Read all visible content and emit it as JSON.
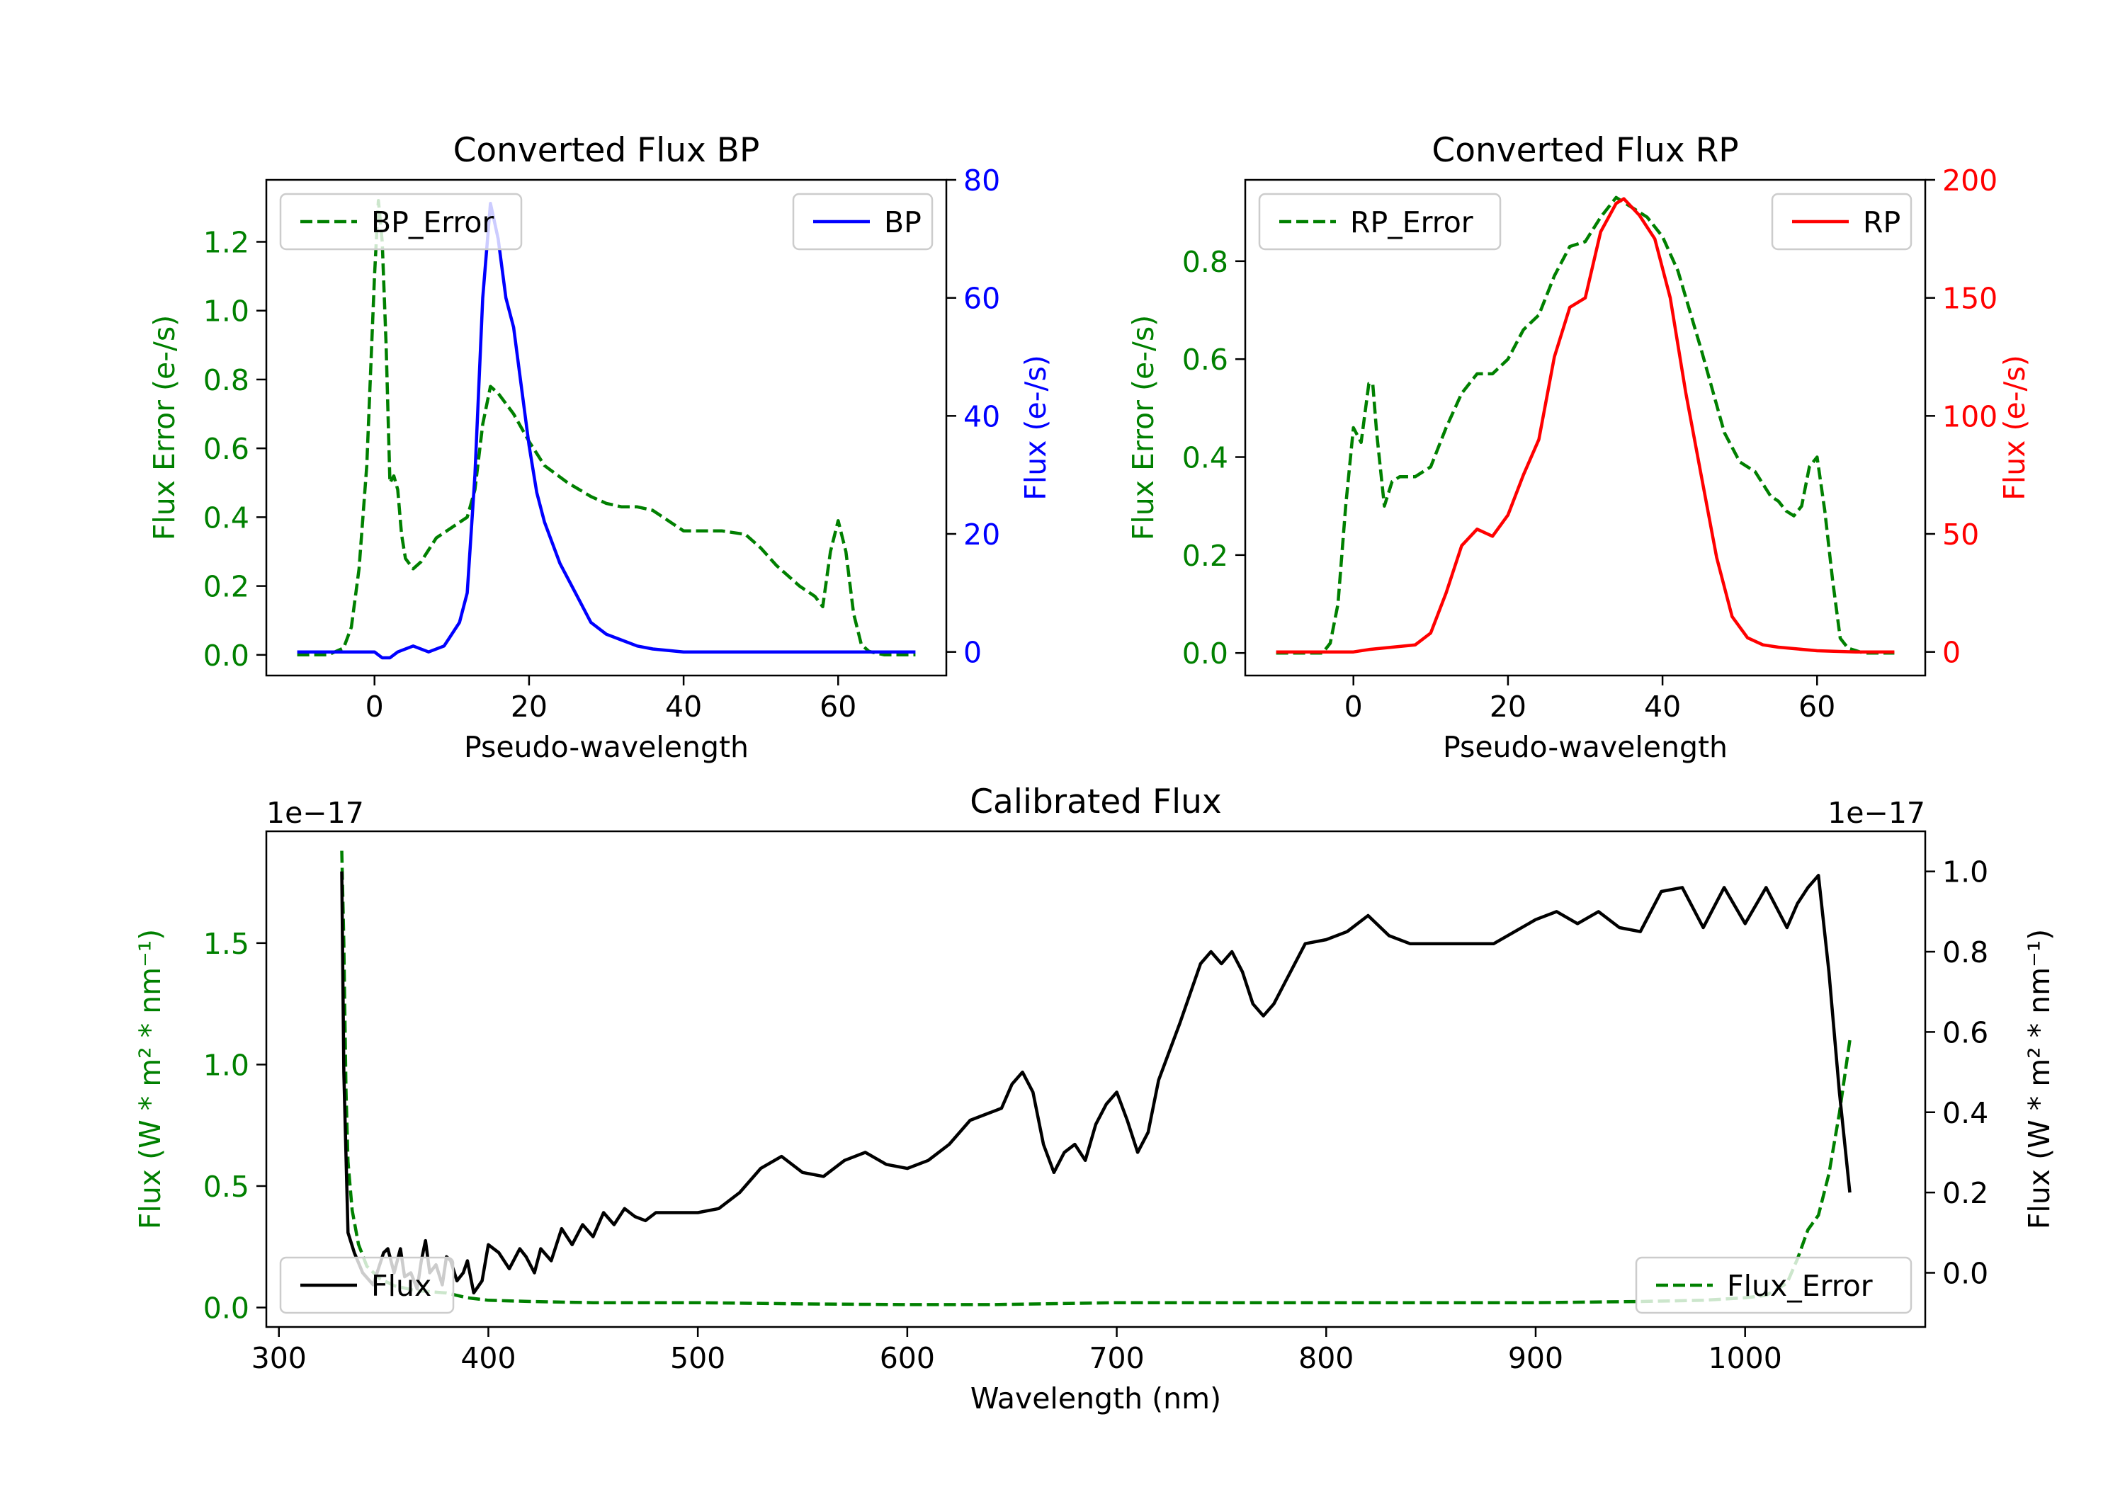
{
  "chart_data": [
    {
      "id": "bp",
      "type": "line",
      "title": "Converted Flux BP",
      "xlabel": "Pseudo-wavelength",
      "ylabel_left": "Flux Error (e-/s)",
      "ylabel_right": "Flux (e-/s)",
      "xlim": [
        -14,
        74
      ],
      "ylim_left": [
        -0.06,
        1.38
      ],
      "ylim_right": [
        -4,
        80
      ],
      "xticks": [
        0,
        20,
        40,
        60
      ],
      "xtick_labels": [
        "0",
        "20",
        "40",
        "60"
      ],
      "yticks_left": [
        0.0,
        0.2,
        0.4,
        0.6,
        0.8,
        1.0,
        1.2
      ],
      "ytick_labels_left": [
        "0.0",
        "0.2",
        "0.4",
        "0.6",
        "0.8",
        "1.0",
        "1.2"
      ],
      "yticks_right": [
        0,
        20,
        40,
        60,
        80
      ],
      "ytick_labels_right": [
        "0",
        "20",
        "40",
        "60",
        "80"
      ],
      "legend_left": {
        "position": "upper-left",
        "label": "BP_Error"
      },
      "legend_right": {
        "position": "upper-right",
        "label": "BP"
      },
      "series": [
        {
          "name": "BP_Error",
          "axis": "left",
          "color": "#008000",
          "dashed": true,
          "x": [
            -10,
            -6,
            -4,
            -3,
            -2,
            -1,
            0,
            0.5,
            1,
            1.5,
            2,
            2.5,
            3,
            3.5,
            4,
            5,
            6,
            8,
            10,
            12,
            13,
            14,
            15,
            16,
            18,
            20,
            22,
            25,
            28,
            30,
            32,
            34,
            36,
            40,
            45,
            48,
            50,
            52,
            55,
            57,
            58,
            59,
            60,
            61,
            62,
            63,
            64,
            66,
            70
          ],
          "y": [
            0,
            0,
            0.02,
            0.08,
            0.25,
            0.55,
            1.1,
            1.32,
            1.2,
            0.9,
            0.5,
            0.52,
            0.48,
            0.35,
            0.28,
            0.25,
            0.27,
            0.34,
            0.37,
            0.4,
            0.48,
            0.67,
            0.78,
            0.76,
            0.7,
            0.62,
            0.55,
            0.5,
            0.46,
            0.44,
            0.43,
            0.43,
            0.42,
            0.36,
            0.36,
            0.35,
            0.31,
            0.26,
            0.2,
            0.17,
            0.14,
            0.3,
            0.39,
            0.3,
            0.12,
            0.03,
            0.01,
            0,
            0
          ]
        },
        {
          "name": "BP",
          "axis": "right",
          "color": "#0000ff",
          "dashed": false,
          "x": [
            -10,
            -5,
            0,
            1,
            2,
            3,
            5,
            7,
            9,
            10,
            11,
            12,
            13,
            14,
            15,
            16,
            17,
            18,
            19,
            20,
            21,
            22,
            24,
            26,
            28,
            30,
            32,
            34,
            36,
            40,
            45,
            50,
            55,
            60,
            65,
            70
          ],
          "y": [
            0,
            0,
            0,
            -1,
            -1,
            0,
            1,
            0,
            1,
            3,
            5,
            10,
            30,
            60,
            76,
            70,
            60,
            55,
            45,
            35,
            27,
            22,
            15,
            10,
            5,
            3,
            2,
            1,
            0.5,
            0,
            0,
            0,
            0,
            0,
            0,
            0
          ]
        }
      ]
    },
    {
      "id": "rp",
      "type": "line",
      "title": "Converted Flux RP",
      "xlabel": "Pseudo-wavelength",
      "ylabel_left": "Flux Error (e-/s)",
      "ylabel_right": "Flux (e-/s)",
      "xlim": [
        -14,
        74
      ],
      "ylim_left": [
        -0.046,
        0.966
      ],
      "ylim_right": [
        -10,
        200
      ],
      "xticks": [
        0,
        20,
        40,
        60
      ],
      "xtick_labels": [
        "0",
        "20",
        "40",
        "60"
      ],
      "yticks_left": [
        0.0,
        0.2,
        0.4,
        0.6,
        0.8
      ],
      "ytick_labels_left": [
        "0.0",
        "0.2",
        "0.4",
        "0.6",
        "0.8"
      ],
      "yticks_right": [
        0,
        50,
        100,
        150,
        200
      ],
      "ytick_labels_right": [
        "0",
        "50",
        "100",
        "150",
        "200"
      ],
      "legend_left": {
        "position": "upper-left",
        "label": "RP_Error"
      },
      "legend_right": {
        "position": "upper-right",
        "label": "RP"
      },
      "series": [
        {
          "name": "RP_Error",
          "axis": "left",
          "color": "#008000",
          "dashed": true,
          "x": [
            -10,
            -4,
            -3,
            -2,
            -1,
            0,
            1,
            2,
            2.5,
            3,
            4,
            5,
            6,
            8,
            10,
            12,
            14,
            16,
            18,
            20,
            22,
            24,
            26,
            28,
            30,
            32,
            34,
            36,
            38,
            40,
            42,
            45,
            48,
            50,
            52,
            54,
            55,
            56,
            57,
            58,
            59,
            60,
            61,
            62,
            63,
            64,
            66,
            70
          ],
          "y": [
            0,
            0,
            0.02,
            0.1,
            0.3,
            0.46,
            0.43,
            0.55,
            0.55,
            0.45,
            0.3,
            0.35,
            0.36,
            0.36,
            0.38,
            0.46,
            0.53,
            0.57,
            0.57,
            0.6,
            0.66,
            0.69,
            0.77,
            0.83,
            0.84,
            0.89,
            0.93,
            0.91,
            0.89,
            0.85,
            0.78,
            0.62,
            0.45,
            0.39,
            0.37,
            0.32,
            0.31,
            0.29,
            0.28,
            0.3,
            0.38,
            0.4,
            0.29,
            0.15,
            0.03,
            0.01,
            0,
            0
          ]
        },
        {
          "name": "RP",
          "axis": "right",
          "color": "#ff0000",
          "dashed": false,
          "x": [
            -10,
            0,
            2,
            5,
            8,
            10,
            12,
            14,
            16,
            18,
            20,
            22,
            24,
            26,
            28,
            30,
            32,
            34,
            35,
            37,
            39,
            41,
            43,
            45,
            47,
            49,
            51,
            53,
            55,
            60,
            65,
            70
          ],
          "y": [
            0,
            0,
            1,
            2,
            3,
            8,
            25,
            45,
            52,
            49,
            58,
            75,
            90,
            125,
            146,
            150,
            178,
            190,
            192,
            185,
            175,
            150,
            110,
            75,
            40,
            15,
            6,
            3,
            2,
            0.5,
            0,
            0
          ]
        }
      ]
    },
    {
      "id": "cal",
      "type": "line",
      "title": "Calibrated Flux",
      "xlabel": "Wavelength (nm)",
      "ylabel_left": "Flux (W * m² * nm⁻¹)",
      "ylabel_right": "Flux (W * m² * nm⁻¹)",
      "offset_left": "1e−17",
      "offset_right": "1e−17",
      "xlim": [
        294,
        1086
      ],
      "ylim_left": [
        -0.08,
        1.96
      ],
      "ylim_right": [
        -0.135,
        1.1
      ],
      "xticks": [
        300,
        400,
        500,
        600,
        700,
        800,
        900,
        1000
      ],
      "xtick_labels": [
        "300",
        "400",
        "500",
        "600",
        "700",
        "800",
        "900",
        "1000"
      ],
      "yticks_left": [
        0.0,
        0.5,
        1.0,
        1.5
      ],
      "ytick_labels_left": [
        "0.0",
        "0.5",
        "1.0",
        "1.5"
      ],
      "yticks_right": [
        0.0,
        0.2,
        0.4,
        0.6,
        0.8,
        1.0
      ],
      "ytick_labels_right": [
        "0.0",
        "0.2",
        "0.4",
        "0.6",
        "0.8",
        "1.0"
      ],
      "legend_left": {
        "position": "lower-left",
        "label": "Flux"
      },
      "legend_right": {
        "position": "lower-right",
        "label": "Flux_Error"
      },
      "series": [
        {
          "name": "Flux_Error",
          "axis": "left",
          "color": "#008000",
          "dashed": true,
          "x": [
            330,
            331,
            332,
            333,
            335,
            338,
            342,
            348,
            355,
            365,
            380,
            390,
            400,
            420,
            450,
            500,
            550,
            600,
            620,
            640,
            700,
            750,
            800,
            850,
            900,
            950,
            980,
            1000,
            1010,
            1020,
            1025,
            1030,
            1035,
            1040,
            1045,
            1050
          ],
          "y": [
            1.88,
            1.5,
            0.9,
            0.6,
            0.4,
            0.26,
            0.17,
            0.12,
            0.09,
            0.07,
            0.06,
            0.04,
            0.03,
            0.025,
            0.02,
            0.02,
            0.015,
            0.012,
            0.012,
            0.012,
            0.02,
            0.02,
            0.02,
            0.02,
            0.02,
            0.025,
            0.03,
            0.04,
            0.05,
            0.1,
            0.2,
            0.32,
            0.38,
            0.55,
            0.8,
            1.1
          ]
        },
        {
          "name": "Flux",
          "axis": "right",
          "color": "#000000",
          "dashed": false,
          "x": [
            330,
            331,
            333,
            336,
            340,
            345,
            350,
            352,
            355,
            358,
            360,
            363,
            366,
            368,
            370,
            372,
            375,
            378,
            380,
            382,
            385,
            388,
            390,
            393,
            397,
            400,
            405,
            410,
            415,
            418,
            422,
            425,
            430,
            435,
            440,
            445,
            450,
            455,
            460,
            465,
            470,
            475,
            480,
            490,
            500,
            510,
            520,
            530,
            540,
            550,
            560,
            570,
            580,
            590,
            600,
            610,
            620,
            630,
            640,
            645,
            650,
            655,
            660,
            665,
            670,
            675,
            680,
            685,
            690,
            695,
            700,
            705,
            710,
            715,
            720,
            725,
            730,
            740,
            745,
            750,
            755,
            760,
            765,
            770,
            775,
            780,
            790,
            800,
            810,
            820,
            830,
            840,
            860,
            880,
            890,
            900,
            910,
            920,
            930,
            940,
            950,
            960,
            970,
            980,
            990,
            1000,
            1010,
            1020,
            1025,
            1030,
            1035,
            1040,
            1045,
            1050
          ],
          "y": [
            1.0,
            0.5,
            0.1,
            0.05,
            0.0,
            -0.03,
            0.05,
            0.06,
            0.0,
            0.06,
            -0.01,
            0.0,
            -0.04,
            0.03,
            0.08,
            0.0,
            0.02,
            -0.03,
            0.04,
            0.03,
            -0.02,
            0.0,
            0.03,
            -0.05,
            -0.02,
            0.07,
            0.05,
            0.01,
            0.06,
            0.04,
            0.0,
            0.06,
            0.03,
            0.11,
            0.07,
            0.12,
            0.09,
            0.15,
            0.12,
            0.16,
            0.14,
            0.13,
            0.15,
            0.15,
            0.15,
            0.16,
            0.2,
            0.26,
            0.29,
            0.25,
            0.24,
            0.28,
            0.3,
            0.27,
            0.26,
            0.28,
            0.32,
            0.38,
            0.4,
            0.41,
            0.47,
            0.5,
            0.45,
            0.32,
            0.25,
            0.3,
            0.32,
            0.28,
            0.37,
            0.42,
            0.45,
            0.38,
            0.3,
            0.35,
            0.48,
            0.55,
            0.62,
            0.77,
            0.8,
            0.77,
            0.8,
            0.75,
            0.67,
            0.64,
            0.67,
            0.72,
            0.82,
            0.83,
            0.85,
            0.89,
            0.84,
            0.82,
            0.82,
            0.82,
            0.85,
            0.88,
            0.9,
            0.87,
            0.9,
            0.86,
            0.85,
            0.95,
            0.96,
            0.86,
            0.96,
            0.87,
            0.96,
            0.86,
            0.92,
            0.96,
            0.99,
            0.75,
            0.45,
            0.2
          ]
        }
      ]
    }
  ]
}
